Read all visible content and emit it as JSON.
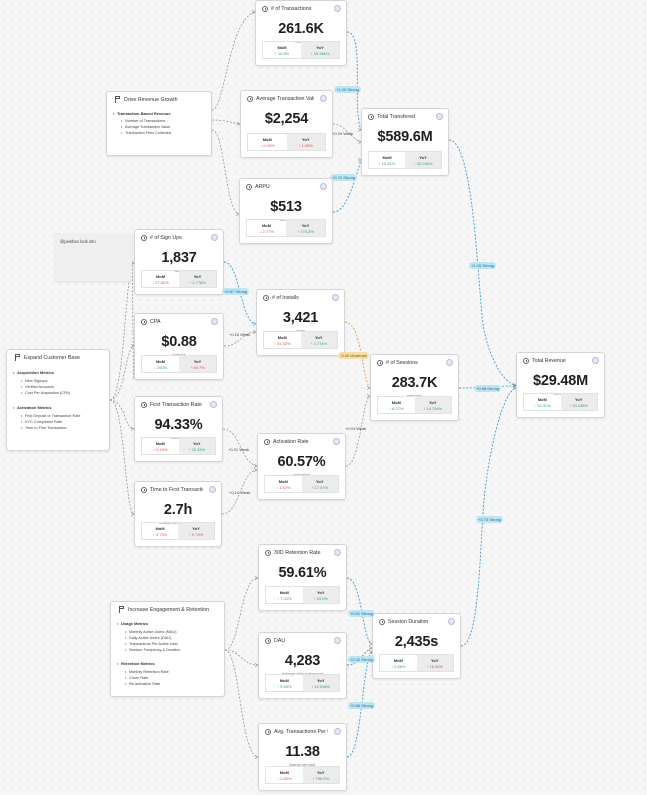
{
  "metrics": {
    "transactions": {
      "title": "# of Transactions",
      "value": "261.6K",
      "sub": "events",
      "mom": "↑ 10.5%",
      "yoy": "↑ 35.366%",
      "mom_dir": "pos",
      "yoy_dir": "pos",
      "mom_label": "MoM",
      "yoy_label": "YoY"
    },
    "avg_tx": {
      "title": "Average Transaction Value",
      "value": "$2,254",
      "sub": "",
      "mom": "↓ 0.09%",
      "yoy": "↓ 1.95%",
      "mom_dir": "neg",
      "yoy_dir": "neg",
      "mom_label": "MoM",
      "yoy_label": "YoY"
    },
    "arpu": {
      "title": "ARPU",
      "value": "$513",
      "sub": "formula",
      "mom": "↓ 2.77%",
      "yoy": "↑ 775.3%",
      "mom_dir": "neg",
      "yoy_dir": "pos",
      "mom_label": "MoM",
      "yoy_label": "YoY"
    },
    "total_transfered": {
      "title": "Total Transfered",
      "value": "$589.6M",
      "sub": "",
      "mom": "↑ 10.41%",
      "yoy": "↑ 33.036%",
      "mom_dir": "pos",
      "yoy_dir": "pos",
      "mom_label": "MoM",
      "yoy_label": "YoY"
    },
    "signups": {
      "title": "# of Sign Ups",
      "value": "1,837",
      "sub": "users",
      "mom": "↓ 27.82%",
      "yoy": "↑ 1.776%",
      "mom_dir": "neg",
      "yoy_dir": "pos",
      "mom_label": "MoM",
      "yoy_label": "YoY"
    },
    "cpa": {
      "title": "CPA",
      "value": "$0.88",
      "sub": "formula",
      "mom": "↓ 290%",
      "yoy": "↑ 69.7%",
      "mom_dir": "pos",
      "yoy_dir": "neg",
      "mom_label": "MoM",
      "yoy_label": "YoY"
    },
    "installs": {
      "title": "# of Installs",
      "value": "3,421",
      "sub": "users",
      "mom": "↓ 31.52%",
      "yoy": "↑ 2.774%",
      "mom_dir": "neg",
      "yoy_dir": "pos",
      "mom_label": "MoM",
      "yoy_label": "YoY"
    },
    "ftr": {
      "title": "First Transaction Rate",
      "value": "94.33%",
      "sub": "converted",
      "mom": "↓ 0.19%",
      "yoy": "↑ 20.33%",
      "mom_dir": "neg",
      "yoy_dir": "pos",
      "mom_label": "MoM",
      "yoy_label": "YoY"
    },
    "activation": {
      "title": "Activation Rate",
      "value": "60.57%",
      "sub": "converted",
      "mom": "↓ 1.57%",
      "yoy": "↑ 17.07%",
      "mom_dir": "neg",
      "yoy_dir": "pos",
      "mom_label": "MoM",
      "yoy_label": "YoY"
    },
    "ttft": {
      "title": "Time to First Transaction",
      "value": "2.7h",
      "sub": "median time to convert",
      "mom": "↑ 3.73%",
      "yoy": "↑ 0.74%",
      "mom_dir": "neg",
      "yoy_dir": "neg",
      "mom_label": "MoM",
      "yoy_label": "YoY"
    },
    "sessions": {
      "title": "# of Sessions",
      "value": "283.7K",
      "sub": "sessions",
      "mom": "↑ 6.17%",
      "yoy": "↑ 14.706%",
      "mom_dir": "pos",
      "yoy_dir": "pos",
      "mom_label": "MoM",
      "yoy_label": "YoY"
    },
    "revenue": {
      "title": "Total Revenue",
      "value": "$29.48M",
      "sub": "formula",
      "mom": "↑ 10.41%",
      "yoy": "↑ 33.036%",
      "mom_dir": "pos",
      "yoy_dir": "pos",
      "mom_label": "MoM",
      "yoy_label": "YoY"
    },
    "retention": {
      "title": "30D Retention Rate",
      "value": "59.61%",
      "sub": "",
      "mom": "↑ 7.02%",
      "yoy": "↑ 43.0%",
      "mom_dir": "pos",
      "yoy_dir": "pos",
      "mom_label": "MoM",
      "yoy_label": "YoY"
    },
    "dau": {
      "title": "DAU",
      "value": "4,283",
      "sub": "average daily active user",
      "mom": "↑ 9.65%",
      "yoy": "↑ 12.098%",
      "mom_dir": "pos",
      "yoy_dir": "pos",
      "mom_label": "MoM",
      "yoy_label": "YoY"
    },
    "avgtx_user": {
      "title": "Avg. Transactions Per Us...",
      "value": "11.38",
      "sub": "events per user",
      "mom": "↓ 2.69%",
      "yoy": "↑ 796.6%",
      "mom_dir": "neg",
      "yoy_dir": "pos",
      "mom_label": "MoM",
      "yoy_label": "YoY"
    },
    "session_duration": {
      "title": "Session Duration",
      "value": "2,435s",
      "sub": "",
      "mom": "↑ 0.86%",
      "yoy": "↑ 16.50%",
      "mom_dir": "pos",
      "yoy_dir": "neg",
      "mom_label": "MoM",
      "yoy_label": "YoY"
    }
  },
  "notes": {
    "drive_revenue": {
      "title": "Drive Revenue Growth",
      "section": "Transaction-Based Revenue",
      "items": [
        "Number of Transactions",
        "Average Transaction Value",
        "Transaction Fees Collected"
      ]
    },
    "expand_customer": {
      "title": "Expand Customer Base",
      "sec1": "Acquisition Metrics",
      "items1": [
        "New Signups",
        "Verified Accounts",
        "Cost Per Acquisition (CPA)"
      ],
      "sec2": "Activation Metrics",
      "items2": [
        "First Deposit or Transaction Rate",
        "KYC Completion Rate",
        "Time to First Transaction"
      ]
    },
    "engagement": {
      "title": "Increase Engagement & Retention",
      "sec1": "Usage Metrics",
      "items1": [
        "Monthly Active Users (MAU)",
        "Daily Active Users (DAU)",
        "Transactions Per Active User",
        "Session Frequency & Duration"
      ],
      "sec2": "Retention Metrics",
      "items2": [
        "Monthly Retention Rate",
        "Churn Rate",
        "Re-activation Rate"
      ]
    }
  },
  "sticky": {
    "text": "@peishan look into"
  },
  "edge_labels": {
    "tx_total": "+1.00 Strong",
    "avg_total": "+0.04 Weak",
    "arpu_total": "+0.72 Strong",
    "total_rev": "+1.00 Strong",
    "signup_install": "+0.87 Strong",
    "cpa_install": "+0.16 Weak",
    "install_sessions": "-0.45 Moderate",
    "ftr_activation": "+0.21 Weak",
    "ttft_activation": "+0.14 Weak",
    "activation_sessions": "+0.03 Weak",
    "sessions_rev": "+0.98 Strong",
    "duration_rev": "+0.73 Strong",
    "retention_duration": "+0.91 Strong",
    "dau_duration": "+0.42 Strong",
    "avgtx_duration": "+0.66 Strong"
  },
  "colors": {
    "strong": "#3b9ad1",
    "moderate": "#e9a23a",
    "weak": "#8a8a8a",
    "positive": "#3aa27a",
    "negative": "#d5564c"
  }
}
